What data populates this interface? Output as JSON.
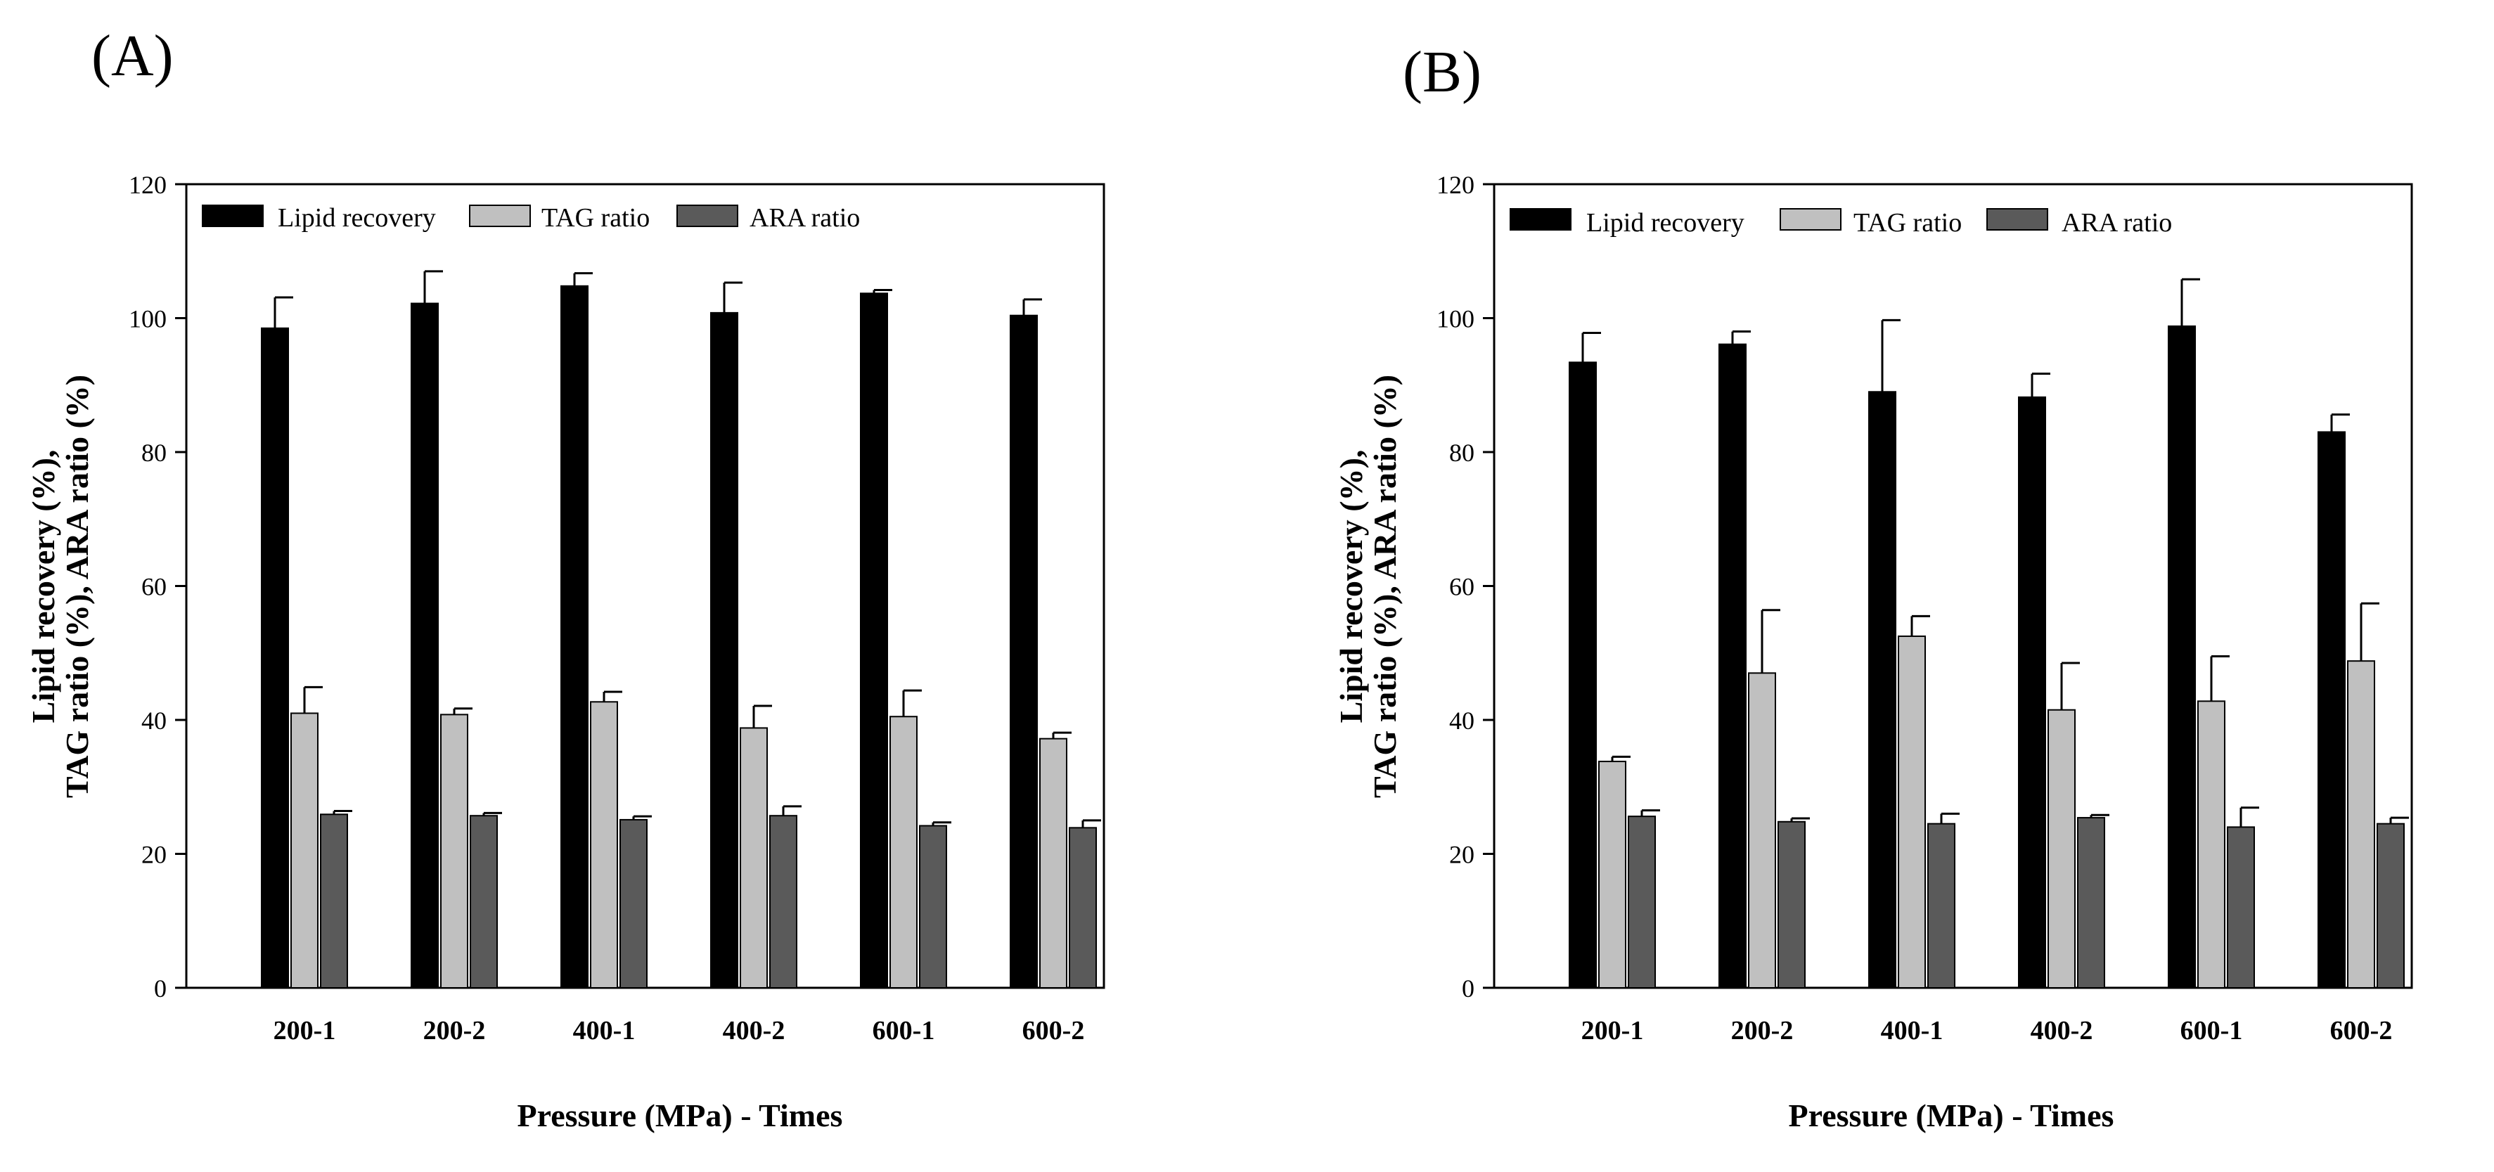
{
  "colors": {
    "lipid": "#000000",
    "tag": "#c0c0c0",
    "ara": "#5a5a5a",
    "axis": "#000000"
  },
  "chart_data": [
    {
      "type": "bar",
      "panel_label": "(A)",
      "categories": [
        "200-1",
        "200-2",
        "400-1",
        "400-2",
        "600-1",
        "600-2"
      ],
      "xlabel": "Pressure (MPa) - Times",
      "ylabel_line1": "Lipid recovery (%),",
      "ylabel_line2": "TAG ratio (%), ARA ratio (%)",
      "ylim": [
        0,
        120
      ],
      "yticks": [
        0,
        20,
        40,
        60,
        80,
        100,
        120
      ],
      "legend_position": "top-left",
      "series": [
        {
          "name": "Lipid recovery",
          "color_key": "lipid",
          "values": [
            98.5,
            102.2,
            104.8,
            100.8,
            103.7,
            100.4
          ],
          "errors": [
            4.6,
            4.8,
            1.9,
            4.5,
            0.5,
            2.4
          ]
        },
        {
          "name": "TAG ratio",
          "color_key": "tag",
          "values": [
            41.0,
            40.8,
            42.7,
            38.8,
            40.5,
            37.2
          ],
          "errors": [
            3.9,
            0.9,
            1.5,
            3.3,
            3.9,
            0.9
          ]
        },
        {
          "name": "ARA ratio",
          "color_key": "ara",
          "values": [
            25.9,
            25.7,
            25.1,
            25.7,
            24.2,
            23.9
          ],
          "errors": [
            0.5,
            0.4,
            0.5,
            1.4,
            0.5,
            1.1
          ]
        }
      ]
    },
    {
      "type": "bar",
      "panel_label": "(B)",
      "categories": [
        "200-1",
        "200-2",
        "400-1",
        "400-2",
        "600-1",
        "600-2"
      ],
      "xlabel": "Pressure (MPa) - Times",
      "ylabel_line1": "Lipid recovery (%),",
      "ylabel_line2": "TAG ratio (%), ARA ratio (%)",
      "ylim": [
        0,
        120
      ],
      "yticks": [
        0,
        20,
        40,
        60,
        80,
        100,
        120
      ],
      "legend_position": "top-left",
      "series": [
        {
          "name": "Lipid recovery",
          "color_key": "lipid",
          "values": [
            93.4,
            96.1,
            89.0,
            88.2,
            98.8,
            83.0
          ],
          "errors": [
            4.4,
            1.9,
            10.7,
            3.5,
            7.0,
            2.6
          ]
        },
        {
          "name": "TAG ratio",
          "color_key": "tag",
          "values": [
            33.8,
            47.0,
            52.5,
            41.5,
            42.8,
            48.8
          ],
          "errors": [
            0.7,
            9.4,
            3.0,
            7.0,
            6.7,
            8.6
          ]
        },
        {
          "name": "ARA ratio",
          "color_key": "ara",
          "values": [
            25.6,
            24.8,
            24.5,
            25.4,
            24.0,
            24.5
          ],
          "errors": [
            0.9,
            0.5,
            1.5,
            0.4,
            2.9,
            0.9
          ]
        }
      ]
    }
  ]
}
